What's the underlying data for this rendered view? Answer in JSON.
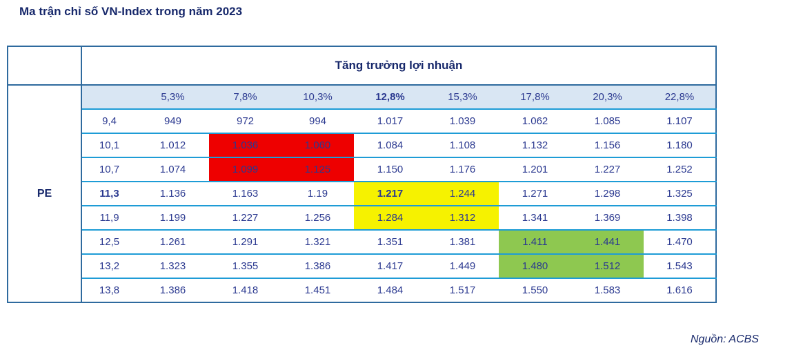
{
  "title": "Ma trận chỉ số VN-Index trong năm 2023",
  "source": "Nguồn: ACBS",
  "table": {
    "col_group_header": "Tăng trưởng lợi nhuận",
    "row_group_header": "PE",
    "col_headers": [
      "5,3%",
      "7,8%",
      "10,3%",
      "12,8%",
      "15,3%",
      "17,8%",
      "20,3%",
      "22,8%"
    ],
    "bold_col_header": "12,8%",
    "rows": [
      {
        "pe": "9,4",
        "pe_bold": false,
        "bold_value_index": -1,
        "values": [
          "949",
          "972",
          "994",
          "1.017",
          "1.039",
          "1.062",
          "1.085",
          "1.107"
        ],
        "highlights": [
          "",
          "",
          "",
          "",
          "",
          "",
          "",
          ""
        ]
      },
      {
        "pe": "10,1",
        "pe_bold": false,
        "bold_value_index": -1,
        "values": [
          "1.012",
          "1.036",
          "1.060",
          "1.084",
          "1.108",
          "1.132",
          "1.156",
          "1.180"
        ],
        "highlights": [
          "",
          "red",
          "red",
          "",
          "",
          "",
          "",
          ""
        ]
      },
      {
        "pe": "10,7",
        "pe_bold": false,
        "bold_value_index": -1,
        "values": [
          "1.074",
          "1.099",
          "1.125",
          "1.150",
          "1.176",
          "1.201",
          "1.227",
          "1.252"
        ],
        "highlights": [
          "",
          "red",
          "red",
          "",
          "",
          "",
          "",
          ""
        ]
      },
      {
        "pe": "11,3",
        "pe_bold": true,
        "bold_value_index": 3,
        "values": [
          "1.136",
          "1.163",
          "1.19",
          "1.217",
          "1.244",
          "1.271",
          "1.298",
          "1.325"
        ],
        "highlights": [
          "",
          "",
          "",
          "yellow",
          "yellow",
          "",
          "",
          ""
        ]
      },
      {
        "pe": "11,9",
        "pe_bold": false,
        "bold_value_index": -1,
        "values": [
          "1.199",
          "1.227",
          "1.256",
          "1.284",
          "1.312",
          "1.341",
          "1.369",
          "1.398"
        ],
        "highlights": [
          "",
          "",
          "",
          "yellow",
          "yellow",
          "",
          "",
          ""
        ]
      },
      {
        "pe": "12,5",
        "pe_bold": false,
        "bold_value_index": -1,
        "values": [
          "1.261",
          "1.291",
          "1.321",
          "1.351",
          "1.381",
          "1.411",
          "1.441",
          "1.470"
        ],
        "highlights": [
          "",
          "",
          "",
          "",
          "",
          "green",
          "green",
          ""
        ]
      },
      {
        "pe": "13,2",
        "pe_bold": false,
        "bold_value_index": -1,
        "values": [
          "1.323",
          "1.355",
          "1.386",
          "1.417",
          "1.449",
          "1.480",
          "1.512",
          "1.543"
        ],
        "highlights": [
          "",
          "",
          "",
          "",
          "",
          "green",
          "green",
          ""
        ]
      },
      {
        "pe": "13,8",
        "pe_bold": false,
        "bold_value_index": -1,
        "values": [
          "1.386",
          "1.418",
          "1.451",
          "1.484",
          "1.517",
          "1.550",
          "1.583",
          "1.616"
        ],
        "highlights": [
          "",
          "",
          "",
          "",
          "",
          "",
          "",
          ""
        ]
      }
    ],
    "colors": {
      "text_navy": "#2B3990",
      "text_dark_navy": "#17286B",
      "border_dark": "#2E6A9E",
      "border_light": "#1E9CD6",
      "header_bg": "#D9E6F3",
      "highlight_red": "#EE0000",
      "highlight_yellow": "#F6F200",
      "highlight_green": "#8EC850"
    }
  },
  "chart_data": {
    "type": "table",
    "title": "Ma trận chỉ số VN-Index trong năm 2023",
    "x_header": "Tăng trưởng lợi nhuận",
    "y_header": "PE",
    "columns_profit_growth": [
      "5,3%",
      "7,8%",
      "10,3%",
      "12,8%",
      "15,3%",
      "17,8%",
      "20,3%",
      "22,8%"
    ],
    "rows_pe": [
      "9,4",
      "10,1",
      "10,7",
      "11,3",
      "11,9",
      "12,5",
      "13,2",
      "13,8"
    ],
    "values": [
      [
        949,
        972,
        994,
        1017,
        1039,
        1062,
        1085,
        1107
      ],
      [
        1012,
        1036,
        1060,
        1084,
        1108,
        1132,
        1156,
        1180
      ],
      [
        1074,
        1099,
        1125,
        1150,
        1176,
        1201,
        1227,
        1252
      ],
      [
        1136,
        1163,
        1190,
        1217,
        1244,
        1271,
        1298,
        1325
      ],
      [
        1199,
        1227,
        1256,
        1284,
        1312,
        1341,
        1369,
        1398
      ],
      [
        1261,
        1291,
        1321,
        1351,
        1381,
        1411,
        1441,
        1470
      ],
      [
        1323,
        1355,
        1386,
        1417,
        1449,
        1480,
        1512,
        1543
      ],
      [
        1386,
        1418,
        1451,
        1484,
        1517,
        1550,
        1583,
        1616
      ]
    ],
    "highlight_regions": [
      {
        "color": "red",
        "cells": "PE 10,1–10,7 × growth 7,8%–10,3%"
      },
      {
        "color": "yellow",
        "cells": "PE 11,3–11,9 × growth 12,8%–15,3%"
      },
      {
        "color": "green",
        "cells": "PE 12,5–13,2 × growth 17,8%–20,3%"
      }
    ],
    "base_case_cell": {
      "pe": "11,3",
      "growth": "12,8%",
      "value": 1217
    },
    "source": "Nguồn: ACBS"
  }
}
